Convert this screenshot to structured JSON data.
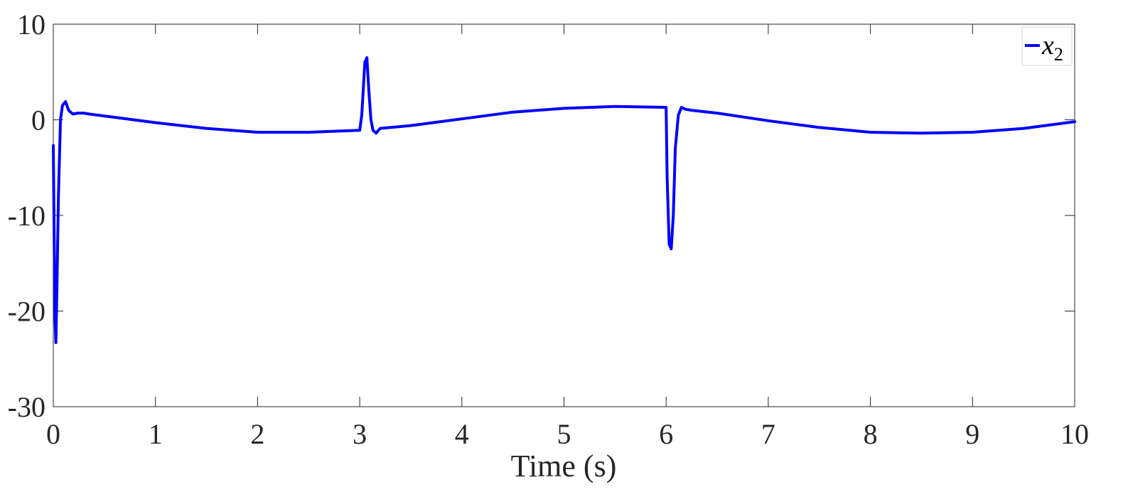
{
  "chart_data": {
    "type": "line",
    "title": "",
    "xlabel": "Time (s)",
    "ylabel": "",
    "xlim": [
      0,
      10
    ],
    "ylim": [
      -30,
      10
    ],
    "xticks": [
      0,
      1,
      2,
      3,
      4,
      5,
      6,
      7,
      8,
      9,
      10
    ],
    "xtick_labels": [
      "0",
      "1",
      "2",
      "3",
      "4",
      "5",
      "6",
      "7",
      "8",
      "9",
      "10"
    ],
    "yticks": [
      10,
      0,
      -10,
      -20,
      -30
    ],
    "ytick_labels": [
      "10",
      "0",
      "-10",
      "-20",
      "-30"
    ],
    "grid": false,
    "legend": {
      "position": "top-right",
      "entries": [
        {
          "symbol": "x",
          "subscript": "2"
        }
      ]
    },
    "series": [
      {
        "name": "x2",
        "color": "#0000ff",
        "x": [
          0.0,
          0.015,
          0.025,
          0.035,
          0.05,
          0.07,
          0.09,
          0.12,
          0.15,
          0.19,
          0.24,
          0.3,
          0.35,
          0.5,
          1.0,
          1.5,
          2.0,
          2.5,
          3.0,
          3.02,
          3.05,
          3.07,
          3.09,
          3.11,
          3.13,
          3.16,
          3.2,
          3.5,
          4.0,
          4.5,
          5.0,
          5.5,
          6.0,
          6.01,
          6.03,
          6.05,
          6.07,
          6.09,
          6.12,
          6.15,
          6.19,
          6.25,
          6.5,
          7.0,
          7.5,
          8.0,
          8.5,
          9.0,
          9.5,
          10.0
        ],
        "y": [
          -2.7,
          -20,
          -23.3,
          -18,
          -8,
          0,
          1.5,
          1.9,
          1.0,
          0.6,
          0.7,
          0.7,
          0.6,
          0.4,
          -0.3,
          -0.9,
          -1.3,
          -1.3,
          -1.1,
          0.5,
          6.0,
          6.5,
          3.0,
          0.0,
          -1.1,
          -1.4,
          -0.9,
          -0.6,
          0.1,
          0.8,
          1.2,
          1.4,
          1.3,
          -6.0,
          -13.0,
          -13.5,
          -10.0,
          -3.0,
          0.5,
          1.3,
          1.1,
          1.0,
          0.7,
          -0.1,
          -0.8,
          -1.3,
          -1.4,
          -1.3,
          -0.9,
          -0.2
        ]
      }
    ]
  }
}
